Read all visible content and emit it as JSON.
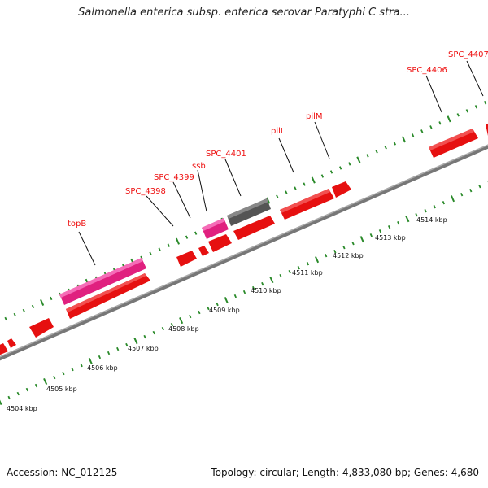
{
  "title": "Salmonella enterica subsp. enterica serovar Paratyphi C stra...",
  "footer": {
    "accession": "Accession: NC_012125",
    "summary": "Topology: circular; Length: 4,833,080 bp; Genes: 4,680"
  },
  "colors": {
    "forward_gene": "#ee1111",
    "reverse_gene": "#ee1111",
    "trna": "#ee2299",
    "other": "#666666",
    "backbone": "#888888",
    "tick": "#2a8a2a",
    "label": "#ee1111"
  },
  "ticks": [
    "4504 kbp",
    "4505 kbp",
    "4506 kbp",
    "4507 kbp",
    "4508 kbp",
    "4509 kbp",
    "4510 kbp",
    "4511 kbp",
    "4512 kbp",
    "4513 kbp",
    "4514 kbp"
  ],
  "gene_labels": [
    "topB",
    "SPC_4398",
    "SPC_4399",
    "ssb",
    "SPC_4401",
    "pilL",
    "pilM",
    "SPC_4406",
    "SPC_4407"
  ]
}
